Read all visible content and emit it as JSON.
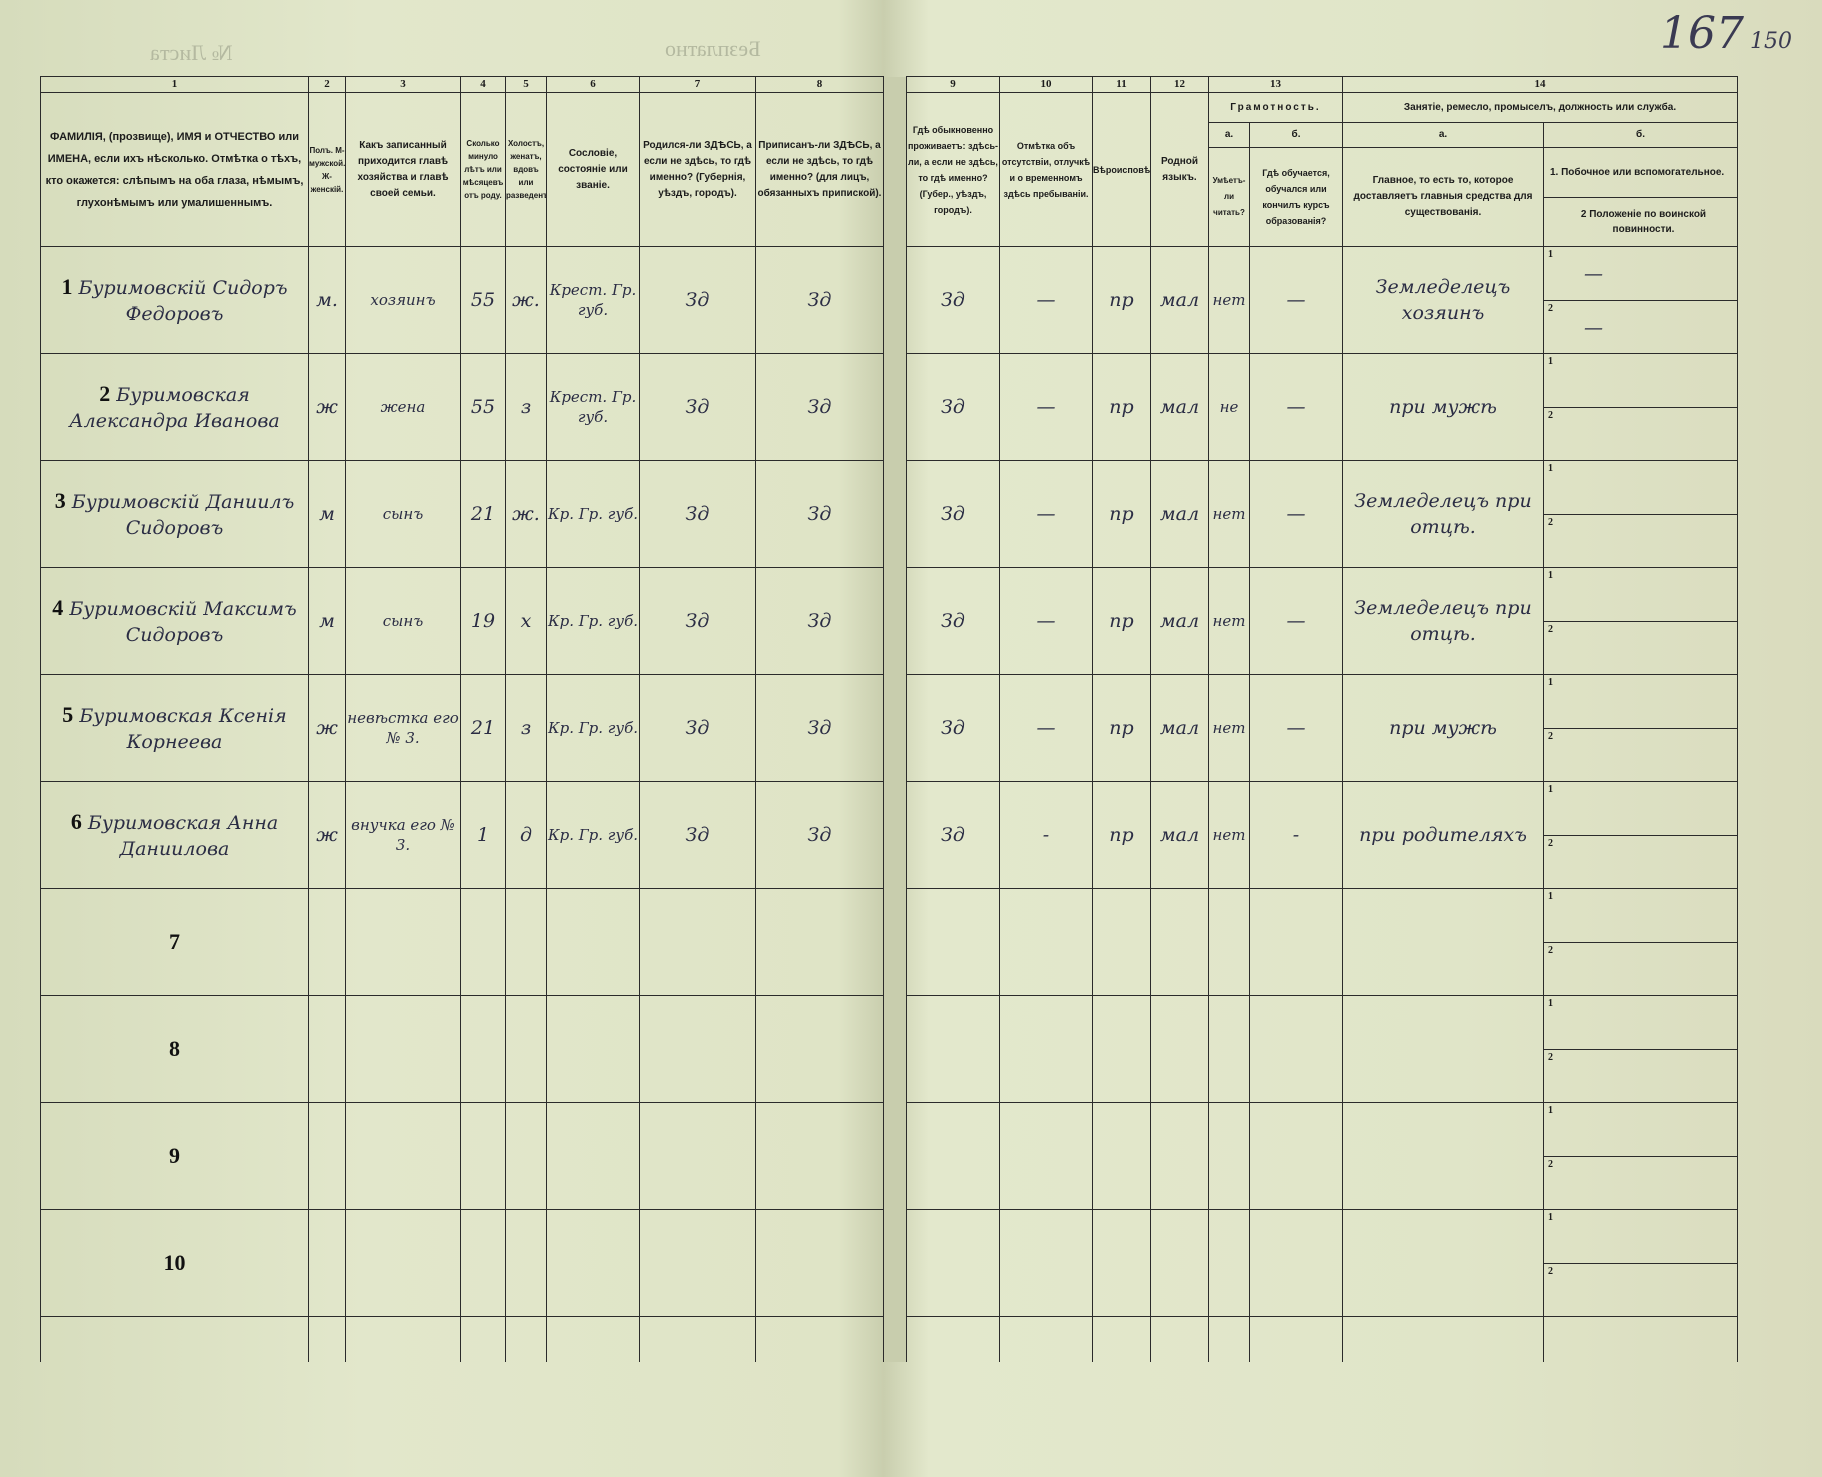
{
  "page": {
    "folio": "167",
    "folio_old": "150",
    "faint_top_left": "№ Листа",
    "faint_top_center": "Безплатно"
  },
  "columns": {
    "numbers": [
      "1",
      "2",
      "3",
      "4",
      "5",
      "6",
      "7",
      "8",
      "9",
      "10",
      "11",
      "12",
      "13",
      "14"
    ],
    "c1": "ФАМИЛІЯ, (прозвище), ИМЯ и ОТЧЕСТВО или ИМЕНА, если ихъ нѣсколько. Отмѣтка о тѣхъ, кто окажется: слѣпымъ на оба глаза, нѣмымъ, глухонѣмымъ или умалишеннымъ.",
    "c2": "Полъ. М-мужской. Ж-женскій.",
    "c3": "Какъ записанный приходится главѣ хозяйства и главѣ своей семьи.",
    "c4": "Сколько минуло лѣтъ или мѣсяцевъ отъ роду.",
    "c5": "Холостъ, женатъ, вдовъ или разведенъ.",
    "c6": "Сословіе, состояніе или званіе.",
    "c7": "Родился-ли ЗДѢСЬ, а если не здѣсь, то гдѣ именно? (Губернія, уѣздъ, городъ).",
    "c8": "Приписанъ-ли ЗДѢСЬ, а если не здѣсь, то гдѣ именно? (для лицъ, обязанныхъ припиской).",
    "c9": "Гдѣ обыкновенно проживаетъ: здѣсь-ли, а если не здѣсь, то гдѣ именно? (Губер., уѣздъ, городъ).",
    "c10": "Отмѣтка объ отсутствіи, отлучкѣ и о временномъ здѣсь пребываніи.",
    "c11": "Вѣроисповѣданіе.",
    "c12": "Родной языкъ.",
    "c13": "Грамотность.",
    "c13a_letter": "а.",
    "c13b_letter": "б.",
    "c13a": "Умѣетъ-ли читать?",
    "c13b": "Гдѣ обучается, обучался или кончилъ курсъ образованія?",
    "c14": "Занятіе, ремесло, промыселъ, должность или служба.",
    "c14a_letter": "а.",
    "c14b_letter": "б.",
    "c14a": "Главное, то есть то, которое доставляетъ главныя средства для существованія.",
    "c14b_1": "1. Побочное или вспомогательное.",
    "c14b_2": "2 Положеніе по воинской повинности."
  },
  "sub_labels": [
    "1",
    "2"
  ],
  "rows": [
    {
      "no": "1",
      "name": "Буримовскій Сидоръ Федоровъ",
      "sex": "м.",
      "relation": "хозяинъ",
      "age": "55",
      "marital": "ж.",
      "estate": "Крест. Гр. губ.",
      "born": "Зд",
      "registered": "Зд",
      "resides": "Зд",
      "absence": "—",
      "religion": "пр",
      "language": "мал",
      "literate": "нет",
      "education": "—",
      "occupation": "Земледелецъ хозяинъ",
      "secondary": "—",
      "military": "—"
    },
    {
      "no": "2",
      "name": "Буримовская Александра Иванова",
      "sex": "ж",
      "relation": "жена",
      "age": "55",
      "marital": "з",
      "estate": "Крест. Гр. губ.",
      "born": "Зд",
      "registered": "Зд",
      "resides": "Зд",
      "absence": "—",
      "religion": "пр",
      "language": "мал",
      "literate": "не",
      "education": "—",
      "occupation": "при мужѣ",
      "secondary": "",
      "military": ""
    },
    {
      "no": "3",
      "name": "Буримовскій Даниилъ Сидоровъ",
      "sex": "м",
      "relation": "сынъ",
      "age": "21",
      "marital": "ж.",
      "estate": "Кр. Гр. губ.",
      "born": "Зд",
      "registered": "Зд",
      "resides": "Зд",
      "absence": "—",
      "religion": "пр",
      "language": "мал",
      "literate": "нет",
      "education": "—",
      "occupation": "Земледелецъ при отцѣ.",
      "secondary": "",
      "military": ""
    },
    {
      "no": "4",
      "name": "Буримовскій Максимъ Сидоровъ",
      "sex": "м",
      "relation": "сынъ",
      "age": "19",
      "marital": "х",
      "estate": "Кр. Гр. губ.",
      "born": "Зд",
      "registered": "Зд",
      "resides": "Зд",
      "absence": "—",
      "religion": "пр",
      "language": "мал",
      "literate": "нет",
      "education": "—",
      "occupation": "Земледелецъ при отцѣ.",
      "secondary": "",
      "military": ""
    },
    {
      "no": "5",
      "name": "Буримовская Ксенія Корнеева",
      "sex": "ж",
      "relation": "невѣстка его № 3.",
      "age": "21",
      "marital": "з",
      "estate": "Кр. Гр. губ.",
      "born": "Зд",
      "registered": "Зд",
      "resides": "Зд",
      "absence": "—",
      "religion": "пр",
      "language": "мал",
      "literate": "нет",
      "education": "—",
      "occupation": "при мужѣ",
      "secondary": "",
      "military": ""
    },
    {
      "no": "6",
      "name": "Буримовская Анна Даниилова",
      "sex": "ж",
      "relation": "внучка его № 3.",
      "age": "1",
      "marital": "д",
      "estate": "Кр. Гр. губ.",
      "born": "Зд",
      "registered": "Зд",
      "resides": "Зд",
      "absence": "-",
      "religion": "пр",
      "language": "мал",
      "literate": "нет",
      "education": "-",
      "occupation": "при родителяхъ",
      "secondary": "",
      "military": ""
    },
    {
      "no": "7"
    },
    {
      "no": "8"
    },
    {
      "no": "9"
    },
    {
      "no": "10"
    }
  ]
}
